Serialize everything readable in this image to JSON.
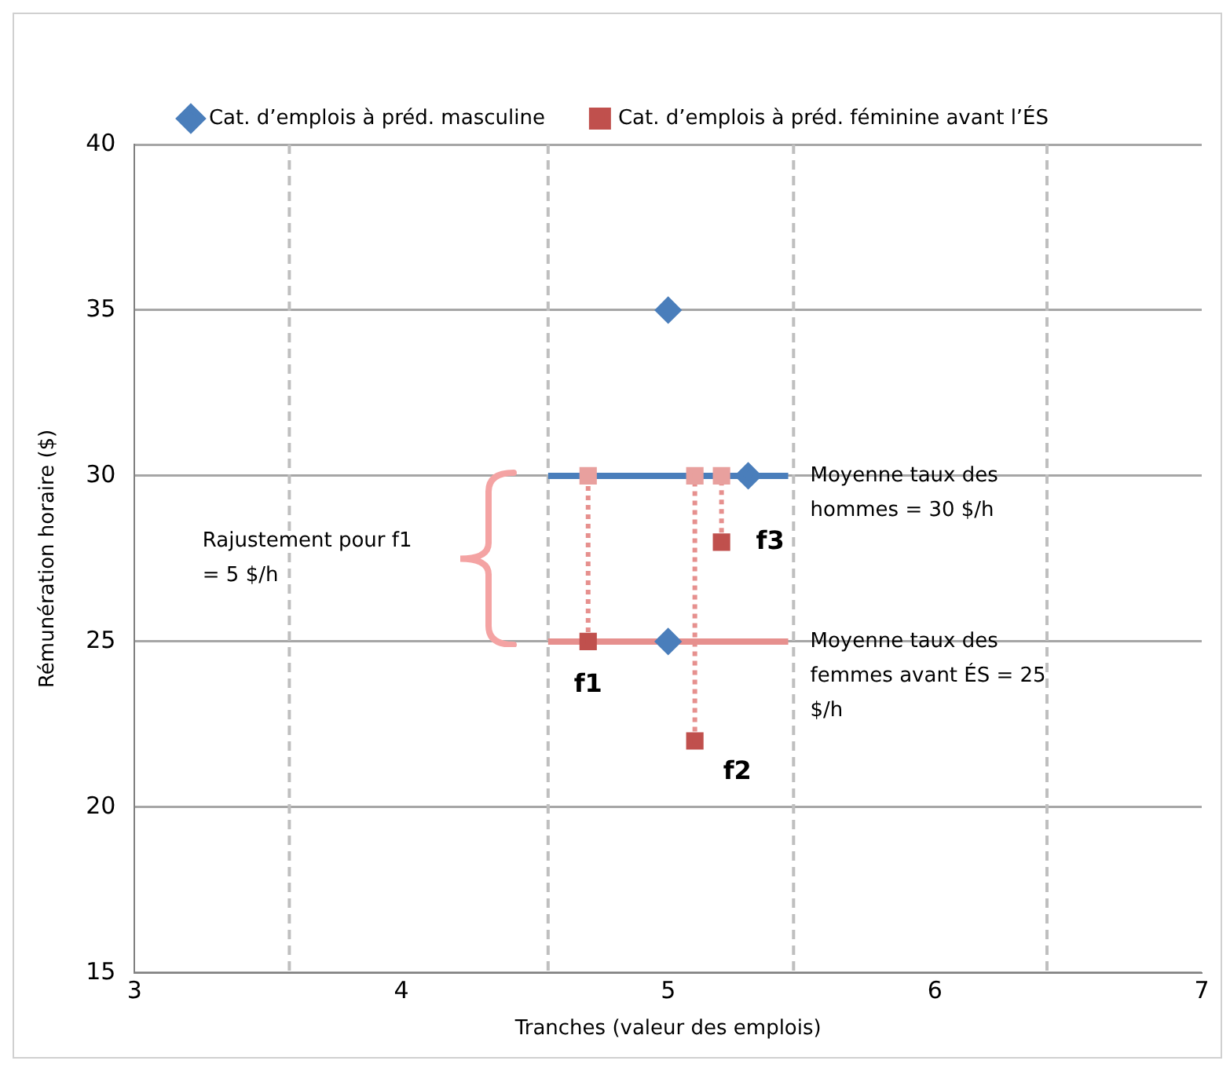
{
  "chart_data": {
    "type": "scatter",
    "xlabel": "Tranches (valeur des emplois)",
    "ylabel": "Rémunération horaire ($)",
    "xlim": [
      3,
      7
    ],
    "xticks": [
      3,
      4,
      5,
      6,
      7
    ],
    "ylim": [
      15,
      40
    ],
    "yticks": [
      15,
      20,
      25,
      30,
      35,
      40
    ],
    "grid": "y",
    "legend": "top",
    "series": [
      {
        "name": "Cat. d’emplois à préd. masculine",
        "type": "scatter",
        "marker": "diamond",
        "color": "#4a7ebb",
        "x": [
          5,
          5,
          5.3
        ],
        "values": [
          35,
          25,
          30
        ]
      },
      {
        "name": "Cat. d’emplois à préd. féminine avant l’ÉS",
        "type": "scatter",
        "marker": "square",
        "color": "#c0504d",
        "x": [
          4.7,
          5.1,
          5.2
        ],
        "values": [
          25,
          22,
          28
        ]
      },
      {
        "type": "scatter",
        "marker": "square",
        "color": "#e8a09e",
        "x": [
          4.7,
          5.1,
          5.2
        ],
        "values": [
          30,
          30,
          30
        ]
      },
      {
        "name": "Moyenne taux des hommes = 30 $/h",
        "type": "line",
        "marker": "none",
        "line_style": "solid",
        "color": "#4a7ebb",
        "x": [
          4.55,
          5.45
        ],
        "values": [
          30,
          30
        ]
      },
      {
        "name": "Moyenne taux des femmes avant ÉS = 25 $/h",
        "type": "line",
        "marker": "none",
        "line_style": "solid",
        "color": "#e6908e",
        "x": [
          4.55,
          5.45
        ],
        "values": [
          25,
          25
        ]
      },
      {
        "type": "line",
        "marker": "none",
        "line_style": "dotted",
        "color": "#e6908e",
        "x": [
          4.7,
          4.7
        ],
        "values": [
          25,
          30
        ]
      },
      {
        "type": "line",
        "marker": "none",
        "line_style": "dotted",
        "color": "#e6908e",
        "x": [
          5.1,
          5.1
        ],
        "values": [
          22,
          30
        ]
      },
      {
        "type": "line",
        "marker": "none",
        "line_style": "dotted",
        "color": "#e6908e",
        "x": [
          5.2,
          5.2
        ],
        "values": [
          28,
          30
        ]
      }
    ],
    "ref_lines": [
      {
        "axis": "x",
        "value": 3.58,
        "color": "#bfbfbf",
        "line_style": "dashed"
      },
      {
        "axis": "x",
        "value": 4.55,
        "color": "#bfbfbf",
        "line_style": "dashed"
      },
      {
        "axis": "x",
        "value": 5.47,
        "color": "#bfbfbf",
        "line_style": "dashed"
      },
      {
        "axis": "x",
        "value": 6.42,
        "color": "#bfbfbf",
        "line_style": "dashed"
      }
    ],
    "annotations": [
      {
        "text": "f1",
        "x": 4.7,
        "y": 25
      },
      {
        "text": "f2",
        "x": 5.1,
        "y": 22
      },
      {
        "text": "f3",
        "x": 5.2,
        "y": 28
      },
      "Rajustement pour f1 = 5 $/h"
    ]
  }
}
